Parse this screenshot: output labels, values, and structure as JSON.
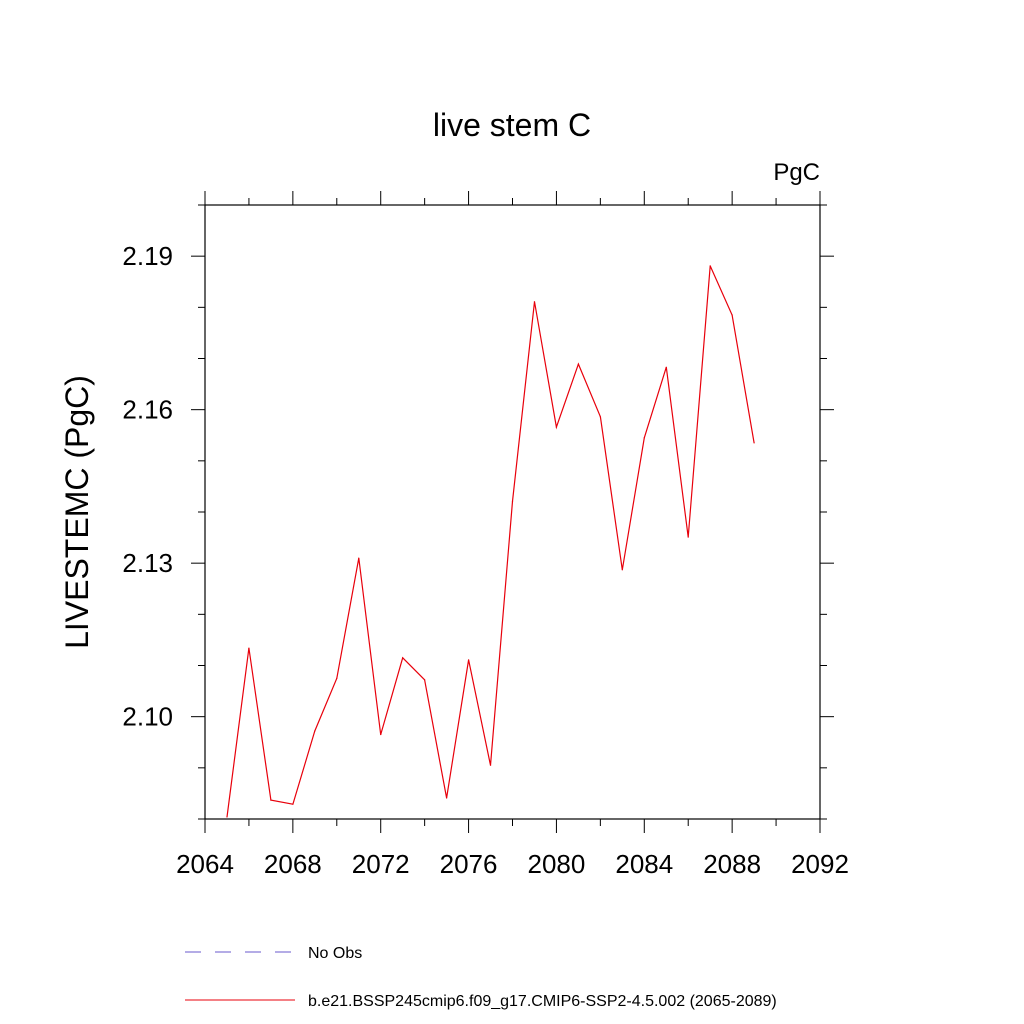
{
  "chart_data": {
    "type": "line",
    "title": "live stem C",
    "units_label": "PgC",
    "ylabel": "LIVESTEMC  (PgC)",
    "xlabel": "",
    "xlim": [
      2064,
      2092
    ],
    "ylim": [
      2.08,
      2.2
    ],
    "x_ticks": [
      2064,
      2068,
      2072,
      2076,
      2080,
      2084,
      2088,
      2092
    ],
    "x_tick_labels": [
      "2064",
      "2068",
      "2072",
      "2076",
      "2080",
      "2084",
      "2088",
      "2092"
    ],
    "y_ticks": [
      2.1,
      2.13,
      2.16,
      2.19
    ],
    "y_tick_labels": [
      "2.10",
      "2.13",
      "2.16",
      "2.19"
    ],
    "y_minor_step": 0.01,
    "x_minor_step": 2,
    "series": [
      {
        "name": "b.e21.BSSP245cmip6.f09_g17.CMIP6-SSP2-4.5.002 (2065-2089)",
        "color": "#e8000b",
        "x": [
          2065,
          2066,
          2067,
          2068,
          2069,
          2070,
          2071,
          2072,
          2073,
          2074,
          2075,
          2076,
          2077,
          2078,
          2079,
          2080,
          2081,
          2082,
          2083,
          2084,
          2085,
          2086,
          2087,
          2088,
          2089
        ],
        "values": [
          2.0804,
          2.1134,
          2.0837,
          2.0829,
          2.0972,
          2.1075,
          2.131,
          2.0965,
          2.1115,
          2.1072,
          2.0841,
          2.1111,
          2.0905,
          2.1421,
          2.1811,
          2.1566,
          2.1689,
          2.1586,
          2.1287,
          2.1545,
          2.1683,
          2.1351,
          2.1881,
          2.1785,
          2.1535
        ]
      }
    ],
    "legend": [
      {
        "label": "No Obs",
        "style": "dashed",
        "color": "#6a5acd"
      },
      {
        "label": "b.e21.BSSP245cmip6.f09_g17.CMIP6-SSP2-4.5.002 (2065-2089)",
        "style": "solid",
        "color": "#e8000b"
      }
    ]
  }
}
